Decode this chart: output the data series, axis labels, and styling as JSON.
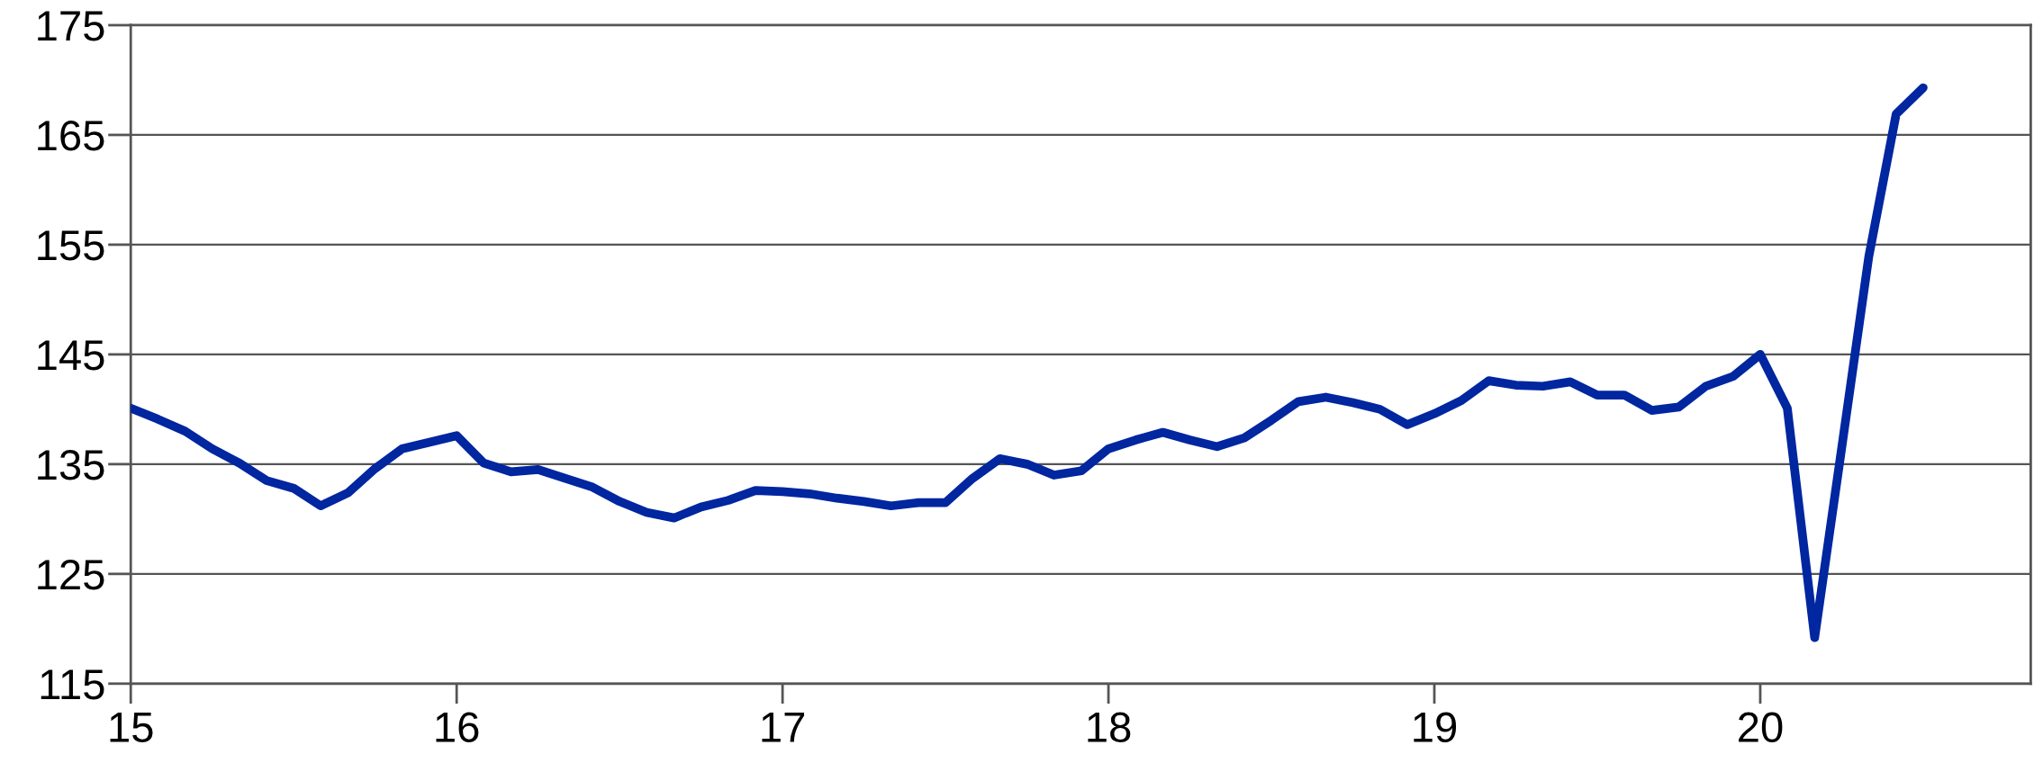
{
  "chart_data": {
    "type": "line",
    "x": [
      15.0,
      15.083,
      15.167,
      15.25,
      15.333,
      15.417,
      15.5,
      15.583,
      15.667,
      15.75,
      15.833,
      15.917,
      16.0,
      16.083,
      16.167,
      16.25,
      16.333,
      16.417,
      16.5,
      16.583,
      16.667,
      16.75,
      16.833,
      16.917,
      17.0,
      17.083,
      17.167,
      17.25,
      17.333,
      17.417,
      17.5,
      17.583,
      17.667,
      17.75,
      17.833,
      17.917,
      18.0,
      18.083,
      18.167,
      18.25,
      18.333,
      18.417,
      18.5,
      18.583,
      18.667,
      18.75,
      18.833,
      18.917,
      19.0,
      19.083,
      19.167,
      19.25,
      19.333,
      19.417,
      19.5,
      19.583,
      19.667,
      19.75,
      19.833,
      19.917,
      20.0,
      20.083,
      20.167,
      20.25,
      20.333,
      20.417,
      20.5
    ],
    "series": [
      {
        "color": "#0026a0",
        "values": [
          140.1,
          139.1,
          138.0,
          136.4,
          135.1,
          133.5,
          132.8,
          131.2,
          132.4,
          134.6,
          136.4,
          137.0,
          137.6,
          135.1,
          134.3,
          134.5,
          133.7,
          132.9,
          131.6,
          130.6,
          130.1,
          131.1,
          131.7,
          132.6,
          132.5,
          132.3,
          131.9,
          131.6,
          131.2,
          131.5,
          131.5,
          133.7,
          135.5,
          135.0,
          134.0,
          134.4,
          136.4,
          137.2,
          137.9,
          137.2,
          136.6,
          137.4,
          139.0,
          140.7,
          141.1,
          140.6,
          140.0,
          138.6,
          139.6,
          140.8,
          142.6,
          142.2,
          142.1,
          142.5,
          141.3,
          141.3,
          139.9,
          140.2,
          142.1,
          143.0,
          145.0,
          140.1,
          119.2,
          136.5,
          153.9,
          166.9,
          169.3
        ]
      }
    ],
    "xlim": [
      15,
      20.83
    ],
    "xticks": [
      15,
      16,
      17,
      18,
      19,
      20
    ],
    "ylim": [
      115,
      175
    ],
    "yticks": [
      115,
      125,
      135,
      145,
      155,
      165,
      175
    ],
    "grid": "y",
    "legend": false,
    "marker": "none",
    "line_style": "solid"
  }
}
